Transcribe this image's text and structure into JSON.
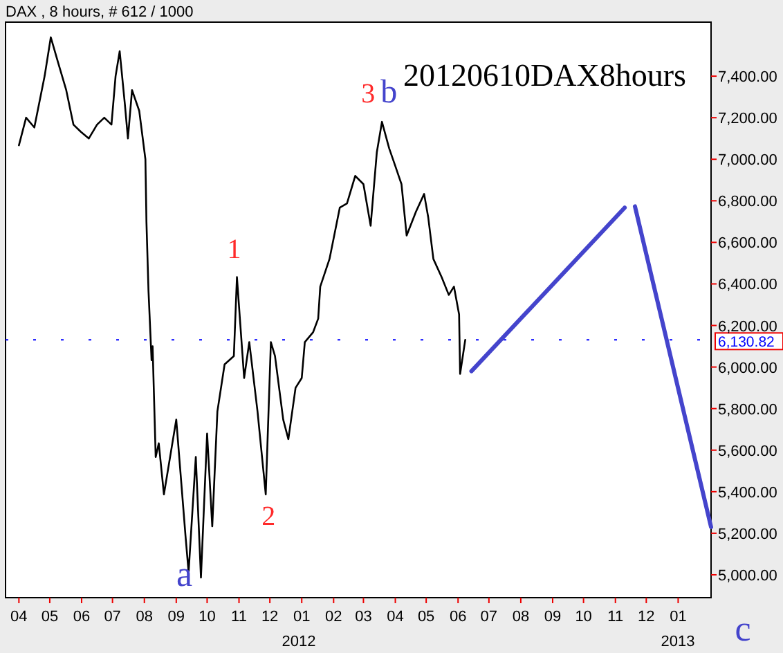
{
  "chart_data": {
    "type": "line",
    "title": "20120610DAX8hours",
    "subtitle": "DAX , 8 hours, # 612 / 1000",
    "xlim": [
      "2011-03-19",
      "2013-02-02"
    ],
    "ylim": [
      4890,
      7660
    ],
    "xticks": [
      {
        "value": "2011-04",
        "label": "04"
      },
      {
        "value": "2011-05",
        "label": "05"
      },
      {
        "value": "2011-06",
        "label": "06"
      },
      {
        "value": "2011-07",
        "label": "07"
      },
      {
        "value": "2011-08",
        "label": "08"
      },
      {
        "value": "2011-09",
        "label": "09"
      },
      {
        "value": "2011-10",
        "label": "10"
      },
      {
        "value": "2011-11",
        "label": "11"
      },
      {
        "value": "2011-12",
        "label": "12"
      },
      {
        "value": "2012-01",
        "label": "01"
      },
      {
        "value": "2012-02",
        "label": "02"
      },
      {
        "value": "2012-03",
        "label": "03"
      },
      {
        "value": "2012-04",
        "label": "04"
      },
      {
        "value": "2012-05",
        "label": "05"
      },
      {
        "value": "2012-06",
        "label": "06"
      },
      {
        "value": "2012-07",
        "label": "07"
      },
      {
        "value": "2012-08",
        "label": "08"
      },
      {
        "value": "2012-09",
        "label": "09"
      },
      {
        "value": "2012-10",
        "label": "10"
      },
      {
        "value": "2012-11",
        "label": "11"
      },
      {
        "value": "2012-12",
        "label": "12"
      },
      {
        "value": "2013-01",
        "label": "01"
      }
    ],
    "yticks": [
      {
        "value": 5000,
        "label": "5,000.00"
      },
      {
        "value": 5200,
        "label": "5,200.00"
      },
      {
        "value": 5400,
        "label": "5,400.00"
      },
      {
        "value": 5600,
        "label": "5,600.00"
      },
      {
        "value": 5800,
        "label": "5,800.00"
      },
      {
        "value": 6000,
        "label": "6,000.00"
      },
      {
        "value": 6200,
        "label": "6,200.00"
      },
      {
        "value": 6400,
        "label": "6,400.00"
      },
      {
        "value": 6600,
        "label": "6,600.00"
      },
      {
        "value": 6800,
        "label": "6,800.00"
      },
      {
        "value": 7000,
        "label": "7,000.00"
      },
      {
        "value": 7200,
        "label": "7,200.00"
      },
      {
        "value": 7400,
        "label": "7,400.00"
      }
    ],
    "grid": false,
    "marker": "none",
    "series": [
      {
        "color": "#000000",
        "x": [
          "2011-04-01",
          "2011-04-08",
          "2011-04-16",
          "2011-04-26",
          "2011-05-02",
          "2011-05-09",
          "2011-05-17",
          "2011-05-24",
          "2011-05-31",
          "2011-06-08",
          "2011-06-16",
          "2011-06-23",
          "2011-06-30",
          "2011-07-04",
          "2011-07-08",
          "2011-07-13",
          "2011-07-16",
          "2011-07-20",
          "2011-07-27",
          "2011-08-02",
          "2011-08-03",
          "2011-08-05",
          "2011-08-08",
          "2011-08-09",
          "2011-08-12",
          "2011-08-15",
          "2011-08-20",
          "2011-09-01",
          "2011-09-10",
          "2011-09-13",
          "2011-09-20",
          "2011-09-25",
          "2011-10-01",
          "2011-10-06",
          "2011-10-11",
          "2011-10-18",
          "2011-10-27",
          "2011-10-30",
          "2011-11-06",
          "2011-11-11",
          "2011-11-19",
          "2011-11-27",
          "2011-12-02",
          "2011-12-06",
          "2011-12-14",
          "2011-12-19",
          "2011-12-26",
          "2012-01-01",
          "2012-01-04",
          "2012-01-12",
          "2012-01-17",
          "2012-01-19",
          "2012-01-28",
          "2012-02-07",
          "2012-02-14",
          "2012-02-22",
          "2012-03-01",
          "2012-03-08",
          "2012-03-14",
          "2012-03-19",
          "2012-03-26",
          "2012-04-01",
          "2012-04-07",
          "2012-04-12",
          "2012-04-21",
          "2012-04-29",
          "2012-05-03",
          "2012-05-08",
          "2012-05-16",
          "2012-05-23",
          "2012-05-28",
          "2012-06-02",
          "2012-06-03",
          "2012-06-08"
        ],
        "values": [
          7067,
          7200,
          7153,
          7400,
          7587,
          7467,
          7333,
          7167,
          7133,
          7100,
          7167,
          7200,
          7167,
          7400,
          7520,
          7267,
          7100,
          7333,
          7233,
          7000,
          6700,
          6367,
          6033,
          6100,
          5567,
          5633,
          5387,
          5747,
          5187,
          5013,
          5567,
          4987,
          5680,
          5233,
          5787,
          6013,
          6053,
          6433,
          5947,
          6120,
          5787,
          5387,
          6120,
          6053,
          5747,
          5653,
          5900,
          5947,
          6120,
          6167,
          6233,
          6387,
          6520,
          6767,
          6787,
          6920,
          6880,
          6680,
          7033,
          7180,
          7053,
          6967,
          6880,
          6633,
          6747,
          6833,
          6720,
          6520,
          6433,
          6347,
          6387,
          6253,
          5967,
          6131
        ]
      },
      {
        "color": "#4444cc",
        "x": [
          "2012-06-14",
          "2012-11-10"
        ],
        "values": [
          5980,
          6767
        ]
      },
      {
        "color": "#4444cc",
        "x": [
          "2012-11-20",
          "2013-02-02"
        ],
        "values": [
          6773,
          5230
        ]
      }
    ],
    "ref_lines": [
      {
        "axis": "y",
        "value": 6130.82,
        "label": "6,130.82",
        "color": "#0000ff",
        "line_style": "dashed"
      }
    ],
    "annotations": [
      {
        "text": "1",
        "x": "2011-10-30",
        "y": 6433
      },
      {
        "text": "2",
        "x": "2011-11-27",
        "y": 5387
      },
      {
        "text": "3",
        "x": "2012-03-19",
        "y": 7180
      },
      {
        "text": "b",
        "x": "2012-03-19",
        "y": 7180
      },
      {
        "text": "a",
        "x": "2011-09-25",
        "y": 4987
      },
      {
        "text": "c",
        "x": "2013-02-02",
        "y": 5230
      },
      "2012",
      "2013"
    ]
  }
}
